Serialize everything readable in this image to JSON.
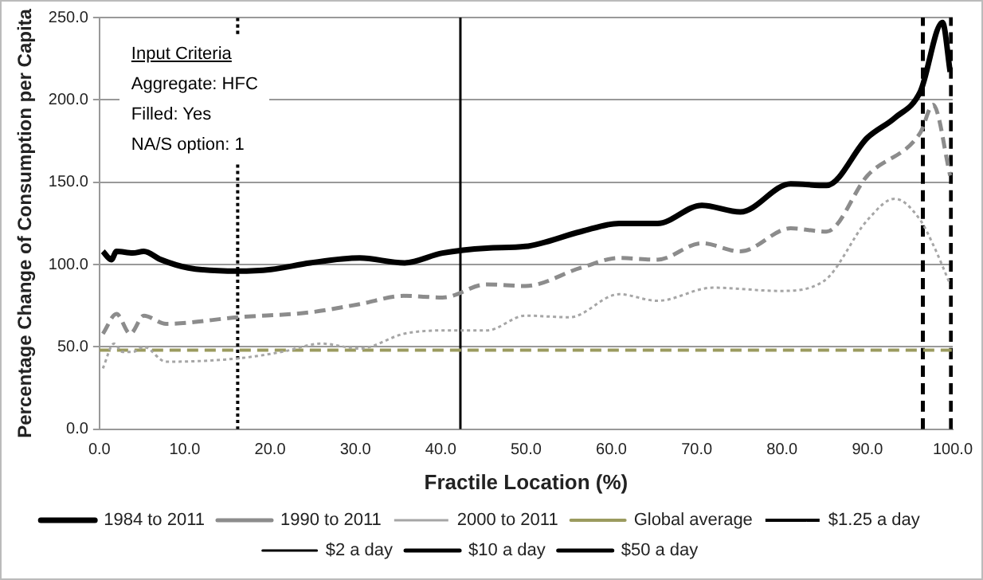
{
  "chart_data": {
    "type": "line",
    "xlabel": "Fractile Location (%)",
    "ylabel": "Percentage Change of Consumption per Capita",
    "xlim": [
      0,
      100
    ],
    "ylim": [
      0,
      250
    ],
    "xticks": [
      {
        "value": 0,
        "label": "0.0"
      },
      {
        "value": 10,
        "label": "10.0"
      },
      {
        "value": 20,
        "label": "20.0"
      },
      {
        "value": 30,
        "label": "30.0"
      },
      {
        "value": 40,
        "label": "40.0"
      },
      {
        "value": 50,
        "label": "50.0"
      },
      {
        "value": 60,
        "label": "60.0"
      },
      {
        "value": 70,
        "label": "70.0"
      },
      {
        "value": 80,
        "label": "80.0"
      },
      {
        "value": 90,
        "label": "90.0"
      },
      {
        "value": 100,
        "label": "100.0"
      }
    ],
    "yticks": [
      {
        "value": 0,
        "label": "0.0"
      },
      {
        "value": 50,
        "label": "50.0"
      },
      {
        "value": 100,
        "label": "100.0"
      },
      {
        "value": 150,
        "label": "150.0"
      },
      {
        "value": 200,
        "label": "200.0"
      },
      {
        "value": 250,
        "label": "250.0"
      }
    ],
    "grid": "y",
    "legend": "bottom",
    "marker": "none",
    "annotations": [
      "Input Criteria",
      "Aggregate: HFC",
      "Filled: Yes",
      "NA/S option: 1"
    ],
    "series": [
      {
        "name": "1984 to 2011",
        "color": "#000000",
        "line_style": "solid",
        "x": [
          0.4,
          1.4,
          2.0,
          3.9,
          5.2,
          7.2,
          10.4,
          16.2,
          20.1,
          24.7,
          30.5,
          35.7,
          40.2,
          45.4,
          49.9,
          56.4,
          60.9,
          65.4,
          70.6,
          75.1,
          81,
          85.2,
          90,
          93.2,
          96.2,
          98.8,
          99.7
        ],
        "values": [
          108,
          103,
          108,
          107,
          108,
          103,
          98,
          96,
          97,
          101,
          104,
          101,
          107,
          110,
          111,
          120,
          125,
          125,
          136,
          132,
          149,
          148,
          177,
          189,
          205,
          247,
          217
        ]
      },
      {
        "name": "1990 to 2011",
        "color": "#8c8c8c",
        "line_style": "dashed",
        "x": [
          0.4,
          2.0,
          3.6,
          5.2,
          7.8,
          16.2,
          24.7,
          30.5,
          35.7,
          40.2,
          45.4,
          49.9,
          56.4,
          60.9,
          65.4,
          70.6,
          75.1,
          81,
          85.2,
          90,
          96.2,
          97.7,
          99.7
        ],
        "values": [
          58,
          70,
          58,
          69,
          64,
          68,
          71,
          76,
          81,
          80,
          88,
          87,
          98,
          104,
          103,
          113,
          108,
          122,
          120,
          154,
          180,
          197,
          154
        ]
      },
      {
        "name": "2000 to 2011",
        "color": "#a6a6a6",
        "line_style": "dotted",
        "x": [
          0.4,
          1.7,
          2.7,
          3.9,
          5.2,
          7.8,
          16.2,
          21.4,
          26,
          30.5,
          35.7,
          40.2,
          45.4,
          49.9,
          55.1,
          60.9,
          65.4,
          71.9,
          79.7,
          84.9,
          90,
          93.2,
          96.2,
          97.8,
          99.7
        ],
        "values": [
          37,
          52,
          47,
          47,
          50,
          41,
          43,
          47,
          52,
          49,
          58,
          60,
          60,
          69,
          68,
          82,
          78,
          86,
          84,
          90,
          127,
          140,
          127,
          111,
          88
        ]
      },
      {
        "name": "Global average",
        "color": "#9b9b5f",
        "line_style": "dashed",
        "x": [
          0,
          100
        ],
        "values": [
          48,
          48
        ]
      },
      {
        "name": "$1.25 a day",
        "color": "#000000",
        "line_style": "dotted",
        "x": [
          16.2,
          16.2
        ],
        "values": [
          0,
          250
        ]
      },
      {
        "name": "$2 a day",
        "color": "#000000",
        "line_style": "solid",
        "x": [
          42.3,
          42.3
        ],
        "values": [
          0,
          250
        ]
      },
      {
        "name": "$10 a day",
        "color": "#000000",
        "line_style": "dashed",
        "x": [
          96.5,
          96.5
        ],
        "values": [
          0,
          250
        ]
      },
      {
        "name": "$50 a day",
        "color": "#000000",
        "line_style": "dashed",
        "x": [
          99.8,
          99.8
        ],
        "values": [
          0,
          250
        ]
      }
    ]
  }
}
